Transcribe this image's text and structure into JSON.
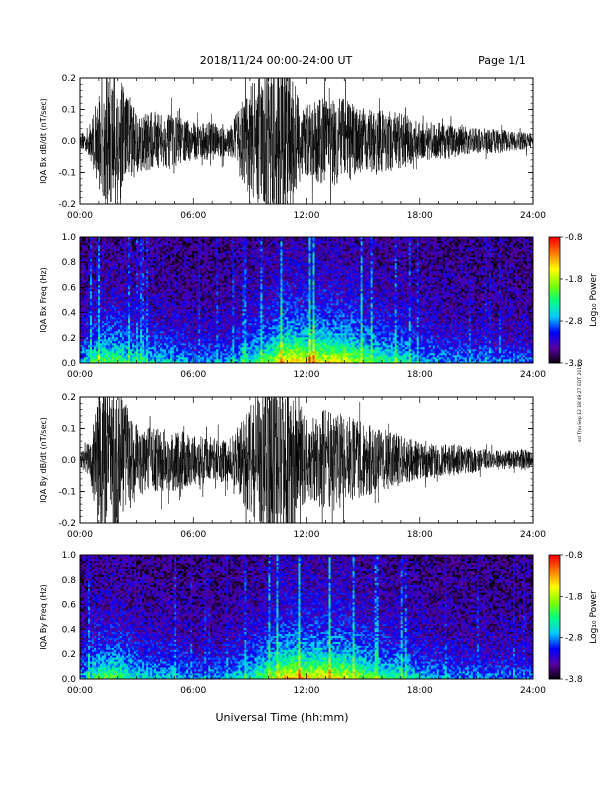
{
  "header": {
    "title": "2018/11/24  00:00-24:00 UT",
    "page": "Page 1/1"
  },
  "footer": {
    "xlabel": "Universal Time (hh:mm)"
  },
  "side_stamp": "ssl Thu Sep 12 18:49:27 EDT 2019",
  "colorbar": {
    "label": "Log₁₀ Power",
    "ticks": [
      "-0.8",
      "-1.8",
      "-2.8",
      "-3.8"
    ],
    "range": [
      -3.8,
      -0.8
    ],
    "colors": [
      "#000000",
      "#5a00a0",
      "#0000ff",
      "#00c8ff",
      "#00ff80",
      "#80ff00",
      "#ffff00",
      "#ff8000",
      "#ff0000"
    ]
  },
  "colors": {
    "trace": "#000000",
    "background": "#ffffff"
  },
  "chart_data": [
    {
      "type": "line",
      "ylabel": "IQA Bx dB/dt (nT/sec)",
      "x_tick_labels": [
        "00:00",
        "06:00",
        "12:00",
        "18:00",
        "24:00"
      ],
      "xlim": [
        0,
        24
      ],
      "ylim": [
        -0.2,
        0.2
      ],
      "y_tick_labels": [
        "0.2",
        "0.1",
        "0.0",
        "-0.1",
        "-0.2"
      ],
      "activity_envelope": {
        "x": [
          0,
          0.5,
          1,
          1.5,
          2,
          3,
          4,
          5,
          6,
          7,
          8,
          8.5,
          9,
          9.5,
          10,
          11,
          11.5,
          12,
          13,
          14,
          15,
          16,
          17,
          18,
          19,
          20,
          21,
          22,
          23,
          23.5,
          24
        ],
        "amplitude": [
          0.02,
          0.05,
          0.15,
          0.22,
          0.22,
          0.1,
          0.09,
          0.08,
          0.06,
          0.06,
          0.05,
          0.12,
          0.18,
          0.2,
          0.25,
          0.3,
          0.15,
          0.12,
          0.14,
          0.14,
          0.1,
          0.1,
          0.09,
          0.06,
          0.06,
          0.05,
          0.04,
          0.04,
          0.03,
          0.03,
          0.02
        ]
      }
    },
    {
      "type": "heatmap",
      "ylabel": "IQA Bx Freq (Hz)",
      "x_tick_labels": [
        "00:00",
        "06:00",
        "12:00",
        "18:00",
        "24:00"
      ],
      "xlim": [
        0,
        24
      ],
      "ylim": [
        0.0,
        1.0
      ],
      "y_tick_labels": [
        "1.0",
        "0.8",
        "0.6",
        "0.4",
        "0.2",
        "0.0"
      ],
      "value_range": [
        -3.8,
        -0.8
      ],
      "activity_x": [
        0,
        1,
        2,
        3,
        4,
        5,
        6,
        7,
        8,
        9,
        10,
        11,
        12,
        13,
        14,
        15,
        16,
        17,
        18,
        19,
        20,
        21,
        22,
        23,
        24
      ],
      "activity_level": [
        0.3,
        0.6,
        0.6,
        0.45,
        0.4,
        0.4,
        0.3,
        0.3,
        0.35,
        0.5,
        0.65,
        0.9,
        0.85,
        0.85,
        0.8,
        0.65,
        0.55,
        0.5,
        0.4,
        0.35,
        0.3,
        0.3,
        0.28,
        0.28,
        0.25
      ]
    },
    {
      "type": "line",
      "ylabel": "IQA By dB/dt (nT/sec)",
      "x_tick_labels": [
        "00:00",
        "06:00",
        "12:00",
        "18:00",
        "24:00"
      ],
      "xlim": [
        0,
        24
      ],
      "ylim": [
        -0.2,
        0.2
      ],
      "y_tick_labels": [
        "0.2",
        "0.1",
        "0.0",
        "-0.1",
        "-0.2"
      ],
      "activity_envelope": {
        "x": [
          0,
          0.5,
          1,
          1.5,
          2,
          3,
          4,
          5,
          6,
          7,
          8,
          8.5,
          9,
          9.5,
          10,
          11,
          11.5,
          12,
          13,
          14,
          15,
          16,
          17,
          18,
          19,
          20,
          21,
          22,
          23,
          23.5,
          24
        ],
        "amplitude": [
          0.02,
          0.06,
          0.2,
          0.25,
          0.22,
          0.12,
          0.1,
          0.1,
          0.08,
          0.07,
          0.07,
          0.12,
          0.18,
          0.22,
          0.28,
          0.32,
          0.2,
          0.14,
          0.16,
          0.15,
          0.12,
          0.1,
          0.08,
          0.06,
          0.05,
          0.05,
          0.04,
          0.03,
          0.03,
          0.04,
          0.02
        ]
      }
    },
    {
      "type": "heatmap",
      "ylabel": "IQA By Freq (Hz)",
      "x_tick_labels": [
        "00:00",
        "06:00",
        "12:00",
        "18:00",
        "24:00"
      ],
      "xlim": [
        0,
        24
      ],
      "ylim": [
        0.0,
        1.0
      ],
      "y_tick_labels": [
        "1.0",
        "0.8",
        "0.6",
        "0.4",
        "0.2",
        "0.0"
      ],
      "value_range": [
        -3.8,
        -0.8
      ],
      "activity_x": [
        0,
        1,
        2,
        3,
        4,
        5,
        6,
        7,
        8,
        9,
        10,
        11,
        12,
        13,
        14,
        15,
        16,
        17,
        18,
        19,
        20,
        21,
        22,
        23,
        24
      ],
      "activity_level": [
        0.3,
        0.6,
        0.6,
        0.45,
        0.4,
        0.4,
        0.3,
        0.3,
        0.35,
        0.5,
        0.65,
        0.9,
        0.85,
        0.85,
        0.8,
        0.65,
        0.55,
        0.5,
        0.4,
        0.35,
        0.3,
        0.3,
        0.28,
        0.28,
        0.25
      ]
    }
  ]
}
